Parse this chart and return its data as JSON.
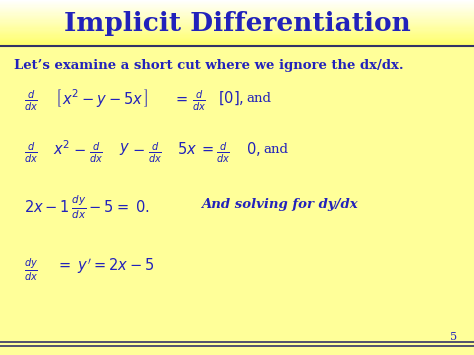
{
  "title": "Implicit Differentiation",
  "title_color": "#2222bb",
  "bg_color": "#ffff99",
  "title_bg_top": "#ffffff",
  "title_bg_bottom": "#ffff88",
  "text_color": "#2222bb",
  "subtitle": "Let’s examine a short cut where we ignore the dx/dx.",
  "page_number": "5",
  "line_color": "#333366",
  "figw": 4.74,
  "figh": 3.55,
  "dpi": 100
}
